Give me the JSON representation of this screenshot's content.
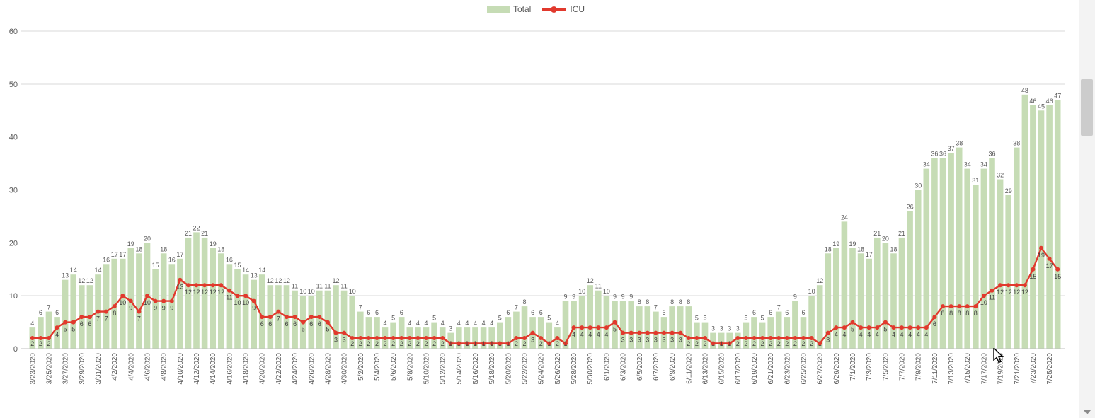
{
  "legend": {
    "items": [
      {
        "label": "Total"
      },
      {
        "label": "ICU"
      }
    ]
  },
  "chart_data": {
    "type": "bar",
    "title": "",
    "xlabel": "",
    "ylabel": "",
    "ylim": [
      0,
      60
    ],
    "yticks": [
      0,
      10,
      20,
      30,
      40,
      50,
      60
    ],
    "grid": true,
    "legend_position": "top",
    "x_tick_every": 2,
    "colors": {
      "grid": "#d9d9d9",
      "axis_line": "#bfbfbf",
      "axis_text": "#595959",
      "bar_label": "#595959",
      "line_label": "#3f3f3f"
    },
    "x": [
      "3/23/2020",
      "3/24/2020",
      "3/25/2020",
      "3/26/2020",
      "3/27/2020",
      "3/28/2020",
      "3/29/2020",
      "3/30/2020",
      "3/31/2020",
      "4/1/2020",
      "4/2/2020",
      "4/3/2020",
      "4/4/2020",
      "4/5/2020",
      "4/6/2020",
      "4/7/2020",
      "4/8/2020",
      "4/9/2020",
      "4/10/2020",
      "4/11/2020",
      "4/12/2020",
      "4/13/2020",
      "4/14/2020",
      "4/15/2020",
      "4/16/2020",
      "4/17/2020",
      "4/18/2020",
      "4/19/2020",
      "4/20/2020",
      "4/21/2020",
      "4/22/2020",
      "4/23/2020",
      "4/24/2020",
      "4/25/2020",
      "4/26/2020",
      "4/27/2020",
      "4/28/2020",
      "4/29/2020",
      "4/30/2020",
      "5/1/2020",
      "5/2/2020",
      "5/3/2020",
      "5/4/2020",
      "5/5/2020",
      "5/6/2020",
      "5/7/2020",
      "5/8/2020",
      "5/9/2020",
      "5/10/2020",
      "5/11/2020",
      "5/12/2020",
      "5/13/2020",
      "5/14/2020",
      "5/15/2020",
      "5/16/2020",
      "5/17/2020",
      "5/18/2020",
      "5/19/2020",
      "5/20/2020",
      "5/21/2020",
      "5/22/2020",
      "5/23/2020",
      "5/24/2020",
      "5/25/2020",
      "5/26/2020",
      "5/27/2020",
      "5/28/2020",
      "5/29/2020",
      "5/30/2020",
      "5/31/2020",
      "6/1/2020",
      "6/2/2020",
      "6/3/2020",
      "6/4/2020",
      "6/5/2020",
      "6/6/2020",
      "6/7/2020",
      "6/8/2020",
      "6/9/2020",
      "6/10/2020",
      "6/11/2020",
      "6/12/2020",
      "6/13/2020",
      "6/14/2020",
      "6/15/2020",
      "6/16/2020",
      "6/17/2020",
      "6/18/2020",
      "6/19/2020",
      "6/20/2020",
      "6/21/2020",
      "6/22/2020",
      "6/23/2020",
      "6/24/2020",
      "6/25/2020",
      "6/26/2020",
      "6/27/2020",
      "6/28/2020",
      "6/29/2020",
      "6/30/2020",
      "7/1/2020",
      "7/2/2020",
      "7/3/2020",
      "7/4/2020",
      "7/5/2020",
      "7/6/2020",
      "7/7/2020",
      "7/8/2020",
      "7/9/2020",
      "7/10/2020",
      "7/11/2020",
      "7/12/2020",
      "7/13/2020",
      "7/14/2020",
      "7/15/2020",
      "7/16/2020",
      "7/17/2020",
      "7/18/2020",
      "7/19/2020",
      "7/20/2020",
      "7/21/2020",
      "7/22/2020",
      "7/23/2020",
      "7/24/2020",
      "7/25/2020",
      "7/26/2020"
    ],
    "series": [
      {
        "name": "Total",
        "type": "bar",
        "color": "#c6dcb5",
        "values": [
          4,
          6,
          7,
          6,
          13,
          14,
          12,
          12,
          14,
          16,
          17,
          17,
          19,
          18,
          20,
          15,
          18,
          16,
          17,
          21,
          22,
          21,
          19,
          18,
          16,
          15,
          14,
          13,
          14,
          12,
          12,
          12,
          11,
          10,
          10,
          11,
          11,
          12,
          11,
          10,
          7,
          6,
          6,
          4,
          5,
          6,
          4,
          4,
          4,
          5,
          4,
          3,
          4,
          4,
          4,
          4,
          4,
          5,
          6,
          7,
          8,
          6,
          6,
          5,
          4,
          9,
          9,
          10,
          12,
          11,
          10,
          9,
          9,
          9,
          8,
          8,
          7,
          6,
          8,
          8,
          8,
          5,
          5,
          3,
          3,
          3,
          3,
          5,
          6,
          5,
          6,
          7,
          6,
          9,
          6,
          10,
          12,
          18,
          19,
          24,
          19,
          18,
          17,
          21,
          20,
          18,
          21,
          26,
          30,
          34,
          36,
          36,
          37,
          38,
          34,
          31,
          34,
          36,
          32,
          29,
          38,
          48,
          46,
          45,
          46,
          47
        ]
      },
      {
        "name": "ICU",
        "type": "line",
        "color": "#e1392d",
        "values": [
          2,
          2,
          2,
          4,
          5,
          5,
          6,
          6,
          7,
          7,
          8,
          10,
          9,
          7,
          10,
          9,
          9,
          9,
          13,
          12,
          12,
          12,
          12,
          12,
          11,
          10,
          10,
          9,
          6,
          6,
          7,
          6,
          6,
          5,
          6,
          6,
          5,
          3,
          3,
          2,
          2,
          2,
          2,
          2,
          2,
          2,
          2,
          2,
          2,
          2,
          2,
          1,
          1,
          1,
          1,
          1,
          1,
          1,
          1,
          2,
          2,
          3,
          2,
          1,
          2,
          1,
          4,
          4,
          4,
          4,
          4,
          5,
          3,
          3,
          3,
          3,
          3,
          3,
          3,
          3,
          2,
          2,
          2,
          1,
          1,
          1,
          2,
          2,
          2,
          2,
          2,
          2,
          2,
          2,
          2,
          2,
          1,
          3,
          4,
          4,
          5,
          4,
          4,
          4,
          5,
          4,
          4,
          4,
          4,
          4,
          6,
          8,
          8,
          8,
          8,
          8,
          10,
          11,
          12,
          12,
          12,
          12,
          15,
          19,
          17,
          15
        ]
      }
    ]
  }
}
